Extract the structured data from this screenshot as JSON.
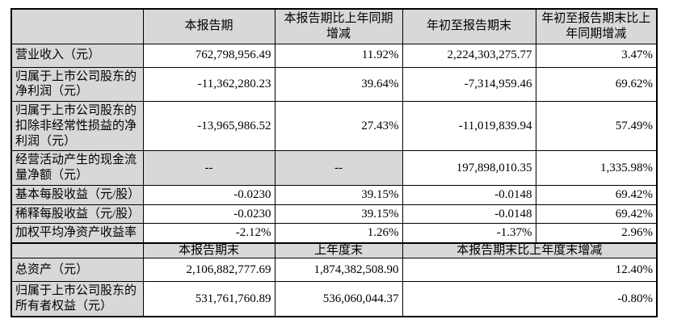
{
  "table": {
    "colors": {
      "header_bg": "#d8d8d8",
      "border": "#000000",
      "text": "#000000",
      "cell_bg": "#ffffff"
    },
    "header_row_1": {
      "corner": "",
      "current_period": "本报告期",
      "current_period_yoy": "本报告期比上年同期增减",
      "ytd": "年初至报告期末",
      "ytd_yoy": "年初至报告期末比上年同期增减"
    },
    "rows_top": [
      {
        "label": "营业收入（元）",
        "current": "762,798,956.49",
        "current_yoy": "11.92%",
        "ytd": "2,224,303,275.77",
        "ytd_yoy": "3.47%"
      },
      {
        "label": "归属于上市公司股东的净利润（元）",
        "current": "-11,362,280.23",
        "current_yoy": "39.64%",
        "ytd": "-7,314,959.46",
        "ytd_yoy": "69.62%"
      },
      {
        "label": "归属于上市公司股东的扣除非经常性损益的净利润（元）",
        "current": "-13,965,986.52",
        "current_yoy": "27.43%",
        "ytd": "-11,019,839.94",
        "ytd_yoy": "57.49%"
      },
      {
        "label": "经营活动产生的现金流量净额（元）",
        "current": "--",
        "current_yoy": "--",
        "ytd": "197,898,010.35",
        "ytd_yoy": "1,335.98%"
      },
      {
        "label": "基本每股收益（元/股）",
        "current": "-0.0230",
        "current_yoy": "39.15%",
        "ytd": "-0.0148",
        "ytd_yoy": "69.42%"
      },
      {
        "label": "稀释每股收益（元/股）",
        "current": "-0.0230",
        "current_yoy": "39.15%",
        "ytd": "-0.0148",
        "ytd_yoy": "69.42%"
      },
      {
        "label": "加权平均净资产收益率",
        "current": "-2.12%",
        "current_yoy": "1.26%",
        "ytd": "-1.37%",
        "ytd_yoy": "2.96%"
      }
    ],
    "header_row_2": {
      "corner": "",
      "period_end": "本报告期末",
      "prev_year_end": "上年度末",
      "period_end_change": "本报告期末比上年度末增减"
    },
    "rows_bottom": [
      {
        "label": "总资产（元）",
        "period_end": "2,106,882,777.69",
        "prev_year_end": "1,874,382,508.90",
        "change": "12.40%"
      },
      {
        "label": "归属于上市公司股东的所有者权益（元）",
        "period_end": "531,761,760.89",
        "prev_year_end": "536,060,044.37",
        "change": "-0.80%"
      }
    ]
  }
}
